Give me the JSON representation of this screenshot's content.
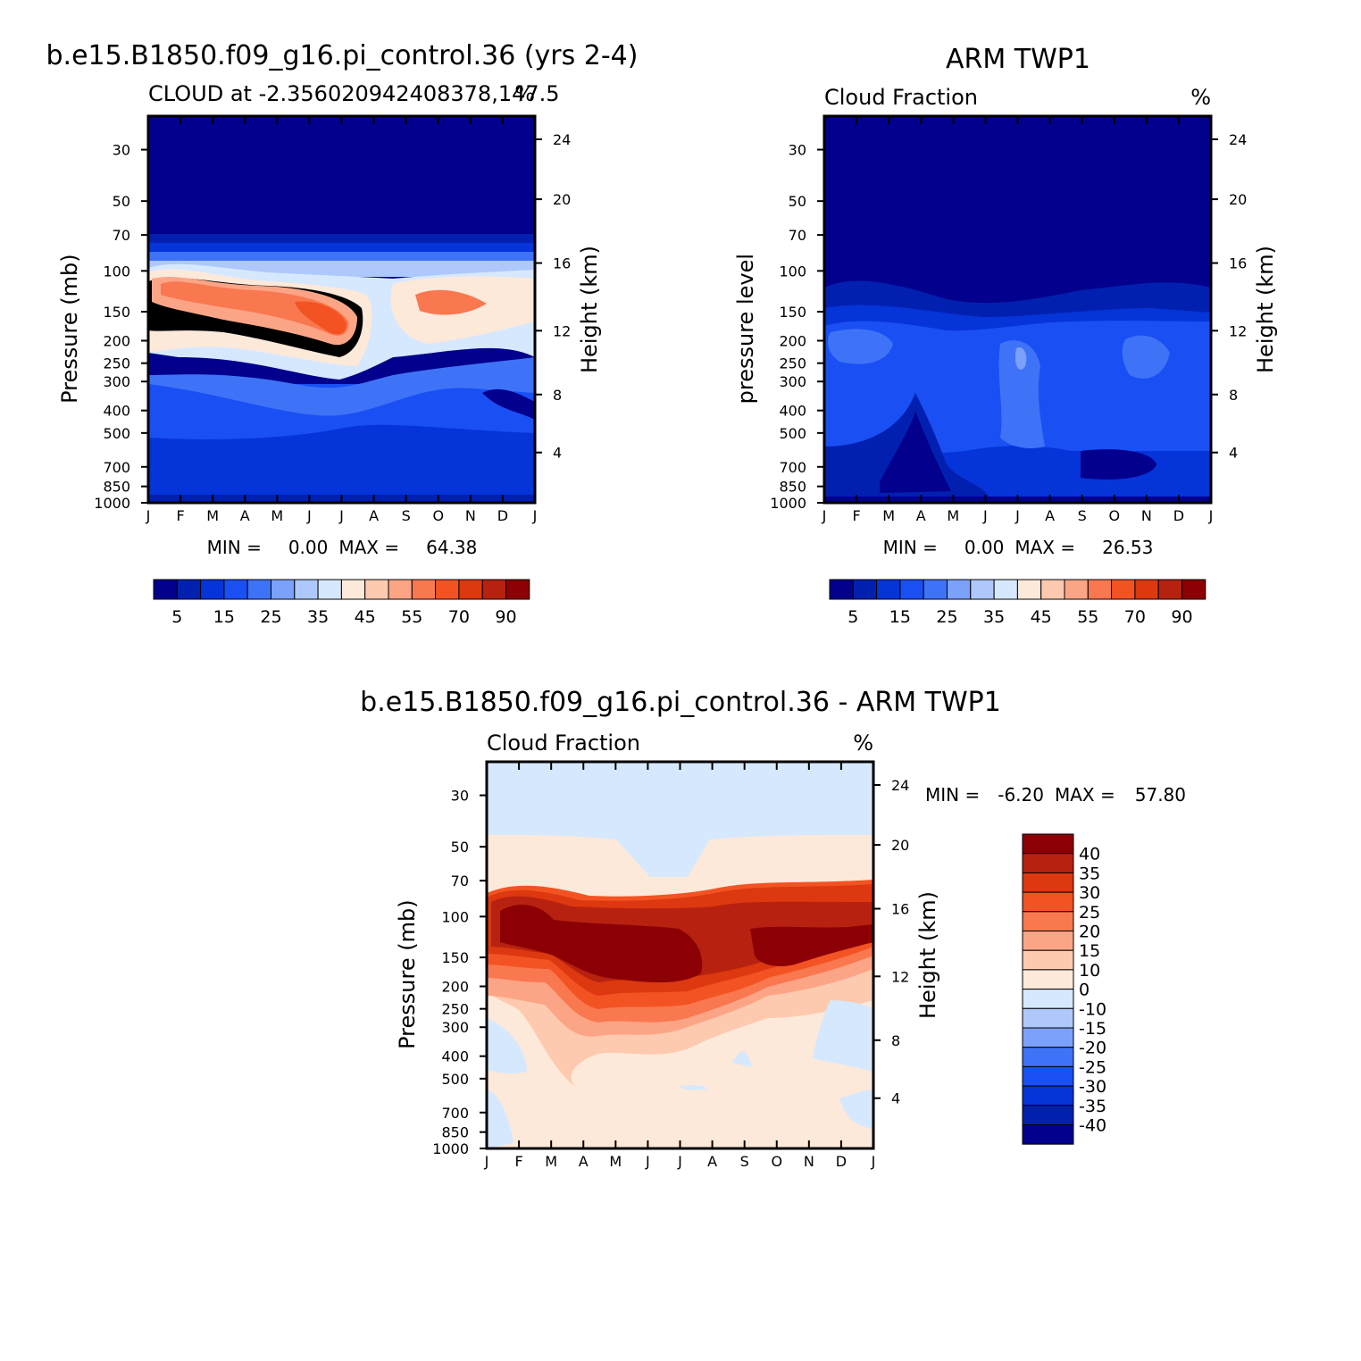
{
  "chart_data": [
    {
      "type": "heatmap",
      "title": "b.e15.B1850.f09_g16.pi_control.36 (yrs 2-4)",
      "subtitle_left": "CLOUD at -2.356020942408378,147.5",
      "subtitle_right": "%",
      "ylabel_left": "Pressure (mb)",
      "ylabel_right": "Height (km)",
      "x_ticks": [
        "J",
        "F",
        "M",
        "A",
        "M",
        "J",
        "J",
        "A",
        "S",
        "O",
        "N",
        "D",
        "J"
      ],
      "y_ticks_pressure": [
        "30",
        "50",
        "70",
        "100",
        "150",
        "200",
        "250",
        "300",
        "400",
        "500",
        "700",
        "850",
        "1000"
      ],
      "y_ticks_height": [
        "24",
        "20",
        "16",
        "12",
        "8",
        "4"
      ],
      "stats": {
        "min_label": "MIN =",
        "min": "0.00",
        "max_label": "MAX =",
        "max": "64.38"
      },
      "colorbar_labels": [
        "5",
        "15",
        "25",
        "35",
        "45",
        "55",
        "70",
        "90"
      ],
      "levels": [
        0,
        5,
        10,
        15,
        20,
        25,
        30,
        35,
        40,
        45,
        50,
        55,
        60,
        70,
        80,
        90
      ],
      "field_profile_pct": [
        0,
        0,
        0,
        0,
        8,
        45,
        52,
        40,
        20,
        12,
        16,
        12,
        10,
        12,
        6,
        12
      ],
      "max_value": 64.38
    },
    {
      "type": "heatmap",
      "title": "ARM TWP1",
      "subtitle_left": "Cloud Fraction",
      "subtitle_right": "%",
      "ylabel_left": "pressure level",
      "ylabel_right": "Height (km)",
      "x_ticks": [
        "J",
        "F",
        "M",
        "A",
        "M",
        "J",
        "J",
        "A",
        "S",
        "O",
        "N",
        "D",
        "J"
      ],
      "y_ticks_pressure": [
        "30",
        "50",
        "70",
        "100",
        "150",
        "200",
        "250",
        "300",
        "400",
        "500",
        "700",
        "850",
        "1000"
      ],
      "y_ticks_height": [
        "24",
        "20",
        "16",
        "12",
        "8",
        "4"
      ],
      "stats": {
        "min_label": "MIN =",
        "min": "0.00",
        "max_label": "MAX =",
        "max": "26.53"
      },
      "colorbar_labels": [
        "5",
        "15",
        "25",
        "35",
        "45",
        "55",
        "70",
        "90"
      ],
      "levels": [
        0,
        5,
        10,
        15,
        20,
        25,
        30,
        35,
        40,
        45,
        50,
        55,
        60,
        70,
        80,
        90
      ],
      "field_profile_pct": [
        0,
        0,
        0,
        0,
        5,
        11,
        18,
        17,
        15,
        14,
        10,
        7,
        8,
        3
      ],
      "max_value": 26.53
    },
    {
      "type": "heatmap",
      "title": "b.e15.B1850.f09_g16.pi_control.36 - ARM TWP1",
      "subtitle_left": "Cloud Fraction",
      "subtitle_right": "%",
      "ylabel_left": "Pressure (mb)",
      "ylabel_right": "Height (km)",
      "x_ticks": [
        "J",
        "F",
        "M",
        "A",
        "M",
        "J",
        "J",
        "A",
        "S",
        "O",
        "N",
        "D",
        "J"
      ],
      "y_ticks_pressure": [
        "30",
        "50",
        "70",
        "100",
        "150",
        "200",
        "250",
        "300",
        "400",
        "500",
        "700",
        "850",
        "1000"
      ],
      "y_ticks_height": [
        "24",
        "20",
        "16",
        "12",
        "8",
        "4"
      ],
      "stats": {
        "min_label": "MIN =",
        "min": "-6.20",
        "max_label": "MAX =",
        "max": "57.80"
      },
      "colorbar_labels": [
        "40",
        "35",
        "30",
        "25",
        "20",
        "15",
        "10",
        "0",
        "-10",
        "-15",
        "-20",
        "-25",
        "-30",
        "-35",
        "-40"
      ],
      "levels": [
        -40,
        -35,
        -30,
        -25,
        -20,
        -15,
        -10,
        0,
        10,
        15,
        20,
        25,
        30,
        35,
        40
      ],
      "max_value": 57.8
    }
  ],
  "colors": {
    "seq_palette": [
      "#03008d",
      "#0220b0",
      "#0534d8",
      "#1a4ff4",
      "#3e73f7",
      "#7ca1fa",
      "#aec8fb",
      "#d6e8fd",
      "#fde9da",
      "#fdcab0",
      "#fca586",
      "#f97850",
      "#f35323",
      "#dd380f",
      "#b72210",
      "#8c0005"
    ],
    "diff_palette": [
      "#03008d",
      "#0220b0",
      "#0534d8",
      "#1a4ff4",
      "#3e73f7",
      "#7ca1fa",
      "#aec8fb",
      "#d6e8fd",
      "#fde9da",
      "#fdcab0",
      "#fca586",
      "#f97850",
      "#f35323",
      "#dd380f",
      "#b72210",
      "#8c0005"
    ]
  }
}
